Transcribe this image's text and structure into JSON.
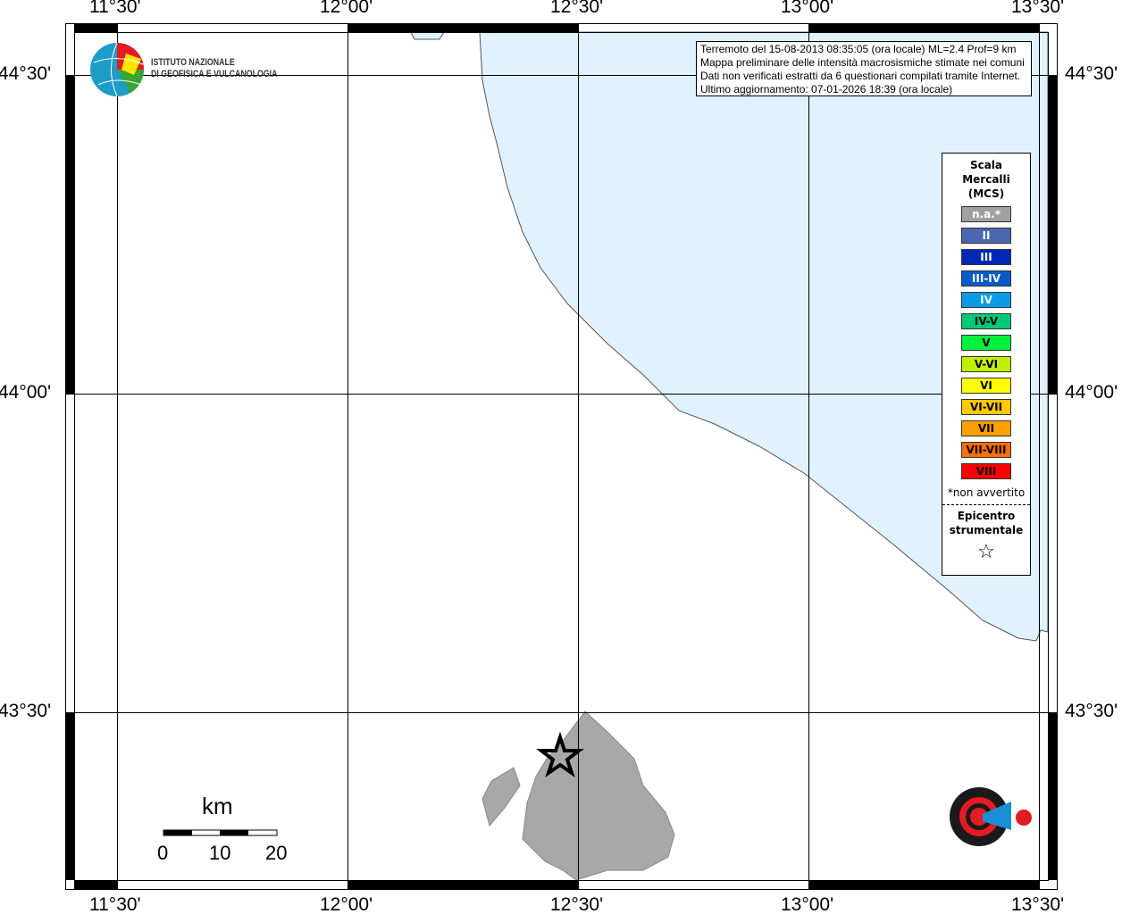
{
  "map": {
    "lon_labels": [
      "11°30'",
      "12°00'",
      "12°30'",
      "13°00'",
      "13°30'"
    ],
    "lat_labels": [
      "44°30'",
      "44°00'",
      "43°30'"
    ],
    "sea_color": "#e0f2ff",
    "land_color": "#ffffff",
    "region_color": "#a8a8a8"
  },
  "info": {
    "line1": "Terremoto del 15-08-2013 08:35:05 (ora locale) ML=2.4 Prof=9 km",
    "line2": "Mappa preliminare delle intensità macrosismiche stimate nei comuni",
    "line3": "Dati non verificati estratti da 6 questionari compilati tramite Internet.",
    "line4": "Ultimo aggiornamento: 07-01-2026 18:39 (ora locale)"
  },
  "logo_ingv": {
    "line1": "ISTITUTO NAZIONALE",
    "line2": "DI GEOFISICA E VULCANOLOGIA"
  },
  "logo_hsit": "www.haisentitoilterremoto.it",
  "legend": {
    "title1": "Scala",
    "title2": "Mercalli",
    "title3": "(MCS)",
    "classes": [
      {
        "label": "n.a.*",
        "color": "#a0a0a0",
        "text": "#ffffff"
      },
      {
        "label": "II",
        "color": "#4a68ae",
        "text": "#ffffff"
      },
      {
        "label": "III",
        "color": "#0028b4",
        "text": "#ffffff"
      },
      {
        "label": "III-IV",
        "color": "#0a5ac8",
        "text": "#ffffff"
      },
      {
        "label": "IV",
        "color": "#0a9be6",
        "text": "#ffffff"
      },
      {
        "label": "IV-V",
        "color": "#00c878",
        "text": "#000000"
      },
      {
        "label": "V",
        "color": "#00f03c",
        "text": "#000000"
      },
      {
        "label": "V-VI",
        "color": "#c0f000",
        "text": "#000000"
      },
      {
        "label": "VI",
        "color": "#ffff00",
        "text": "#000000"
      },
      {
        "label": "VI-VII",
        "color": "#ffc800",
        "text": "#000000"
      },
      {
        "label": "VII",
        "color": "#ffa000",
        "text": "#000000"
      },
      {
        "label": "VII-VIII",
        "color": "#ff6e00",
        "text": "#000000"
      },
      {
        "label": "VIII",
        "color": "#ff0000",
        "text": "#000000"
      }
    ],
    "note": "*non avvertito",
    "epi1": "Epicentro",
    "epi2": "strumentale",
    "epi_icon": "star-icon"
  },
  "scale": {
    "unit": "km",
    "labels": [
      "0",
      "10",
      "20"
    ]
  }
}
